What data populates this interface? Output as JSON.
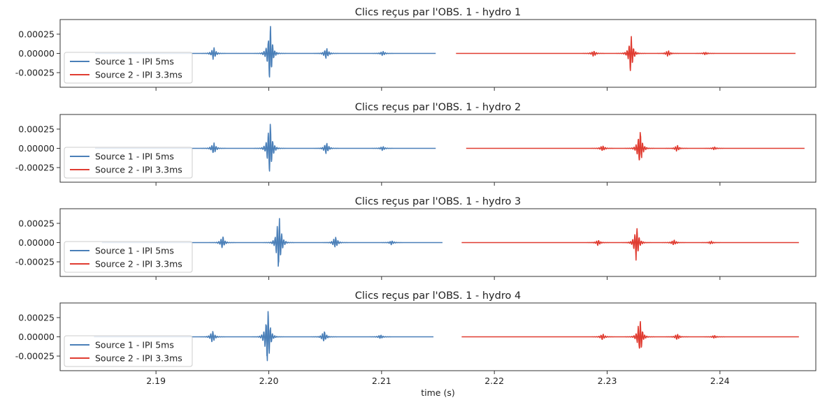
{
  "chart_data": {
    "type": "line",
    "xlabel": "time (s)",
    "xlim": [
      2.1815,
      2.2485
    ],
    "xticks": [
      2.19,
      2.2,
      2.21,
      2.22,
      2.23,
      2.24
    ],
    "xtick_labels": [
      "2.19",
      "2.20",
      "2.21",
      "2.22",
      "2.23",
      "2.24"
    ],
    "ylim": [
      -0.00044,
      0.00044
    ],
    "yticks": [
      0.00025,
      0.0,
      -0.00025
    ],
    "ytick_labels": [
      "0.00025",
      "0.00000",
      "-0.00025"
    ],
    "legend_location": "lower-left",
    "colors": {
      "source1": "#4a7fb8",
      "source2": "#e03c31"
    },
    "panels": [
      {
        "title": "Clics reçus par l'OBS. 1 - hydro 1",
        "series": [
          {
            "name": "Source 1 - IPI 5ms",
            "color": "#4a7fb8",
            "x_range": [
              2.1846,
              2.2148
            ],
            "clicks": [
              {
                "t": 2.1951,
                "amp": 8e-05
              },
              {
                "t": 2.2001,
                "amp": 0.00041
              },
              {
                "t": 2.2051,
                "amp": 8e-05
              },
              {
                "t": 2.2101,
                "amp": 3e-05
              }
            ]
          },
          {
            "name": "Source 2 - IPI 3.3ms",
            "color": "#e03c31",
            "x_range": [
              2.2166,
              2.2467
            ],
            "clicks": [
              {
                "t": 2.2288,
                "amp": 4e-05
              },
              {
                "t": 2.2321,
                "amp": 0.00025
              },
              {
                "t": 2.2354,
                "amp": 4e-05
              },
              {
                "t": 2.2387,
                "amp": 2e-05
              }
            ]
          }
        ]
      },
      {
        "title": "Clics reçus par l'OBS. 1 - hydro 2",
        "series": [
          {
            "name": "Source 1 - IPI 5ms",
            "color": "#4a7fb8",
            "x_range": [
              2.1846,
              2.2148
            ],
            "clicks": [
              {
                "t": 2.1951,
                "amp": 8e-05
              },
              {
                "t": 2.2001,
                "amp": 0.00041
              },
              {
                "t": 2.2051,
                "amp": 8e-05
              },
              {
                "t": 2.2101,
                "amp": 3e-05
              }
            ]
          },
          {
            "name": "Source 2 - IPI 3.3ms",
            "color": "#e03c31",
            "x_range": [
              2.2175,
              2.2475
            ],
            "clicks": [
              {
                "t": 2.2296,
                "amp": 4e-05
              },
              {
                "t": 2.2329,
                "amp": 0.00026
              },
              {
                "t": 2.2362,
                "amp": 4e-05
              },
              {
                "t": 2.2395,
                "amp": 2e-05
              }
            ]
          }
        ]
      },
      {
        "title": "Clics reçus par l'OBS. 1 - hydro 3",
        "series": [
          {
            "name": "Source 1 - IPI 5ms",
            "color": "#4a7fb8",
            "x_range": [
              2.1852,
              2.2154
            ],
            "clicks": [
              {
                "t": 2.1959,
                "amp": 8e-05
              },
              {
                "t": 2.2009,
                "amp": 0.0004
              },
              {
                "t": 2.2059,
                "amp": 8e-05
              },
              {
                "t": 2.2109,
                "amp": 3e-05
              }
            ]
          },
          {
            "name": "Source 2 - IPI 3.3ms",
            "color": "#e03c31",
            "x_range": [
              2.2171,
              2.247
            ],
            "clicks": [
              {
                "t": 2.2292,
                "amp": 4e-05
              },
              {
                "t": 2.2326,
                "amp": 0.00025
              },
              {
                "t": 2.2359,
                "amp": 4e-05
              },
              {
                "t": 2.2392,
                "amp": 2e-05
              }
            ]
          }
        ]
      },
      {
        "title": "Clics reçus par l'OBS. 1 - hydro 4",
        "series": [
          {
            "name": "Source 1 - IPI 5ms",
            "color": "#4a7fb8",
            "x_range": [
              2.1845,
              2.2146
            ],
            "clicks": [
              {
                "t": 2.195,
                "amp": 8e-05
              },
              {
                "t": 2.1999,
                "amp": 0.00042
              },
              {
                "t": 2.2049,
                "amp": 8e-05
              },
              {
                "t": 2.2099,
                "amp": 3e-05
              }
            ]
          },
          {
            "name": "Source 2 - IPI 3.3ms",
            "color": "#e03c31",
            "x_range": [
              2.2171,
              2.247
            ],
            "clicks": [
              {
                "t": 2.2296,
                "amp": 4e-05
              },
              {
                "t": 2.2329,
                "amp": 0.00025
              },
              {
                "t": 2.2362,
                "amp": 4e-05
              },
              {
                "t": 2.2395,
                "amp": 2e-05
              }
            ]
          }
        ]
      }
    ]
  }
}
